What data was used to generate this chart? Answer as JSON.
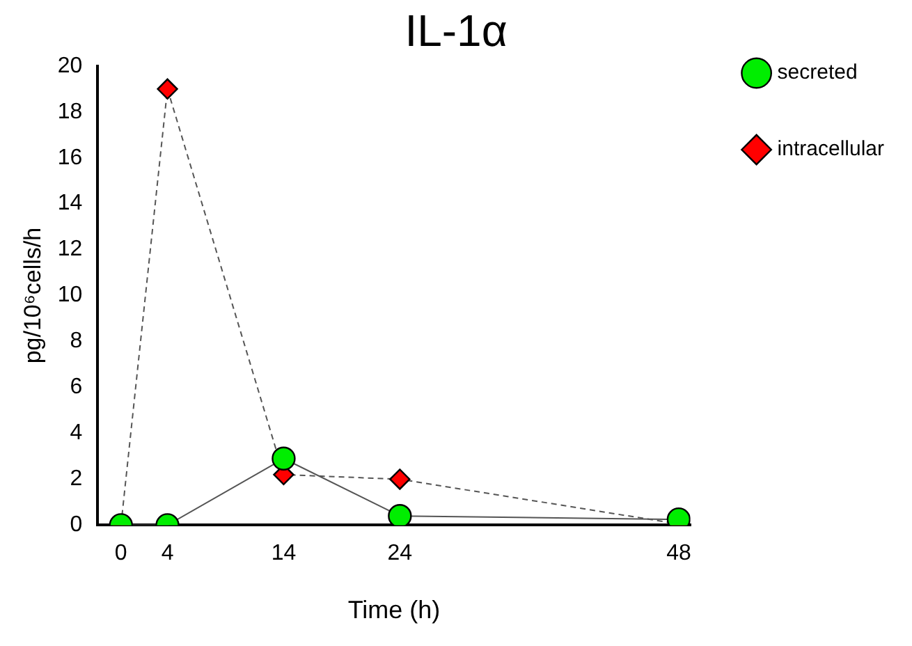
{
  "chart_data": {
    "type": "line",
    "title": "IL-1α",
    "xlabel": "Time (h)",
    "ylabel": "pg/10⁶cells/h",
    "x": [
      0,
      4,
      14,
      24,
      48
    ],
    "series": [
      {
        "name": "secreted",
        "color": "#00ee00",
        "values": [
          0,
          0,
          2.9,
          0.4,
          0.25
        ],
        "marker": "circle",
        "line_style": "solid"
      },
      {
        "name": "intracellular",
        "color": "#ff0000",
        "values": [
          0,
          19,
          2.2,
          2.0,
          0.05
        ],
        "marker": "diamond",
        "line_style": "dashed"
      }
    ],
    "xlim": [
      -2,
      49
    ],
    "xticks": [
      0,
      4,
      14,
      24,
      48
    ],
    "ylim": [
      0,
      20
    ],
    "yticks": [
      0,
      2,
      4,
      6,
      8,
      10,
      12,
      14,
      16,
      18,
      20
    ],
    "grid": false,
    "legend": "right"
  }
}
